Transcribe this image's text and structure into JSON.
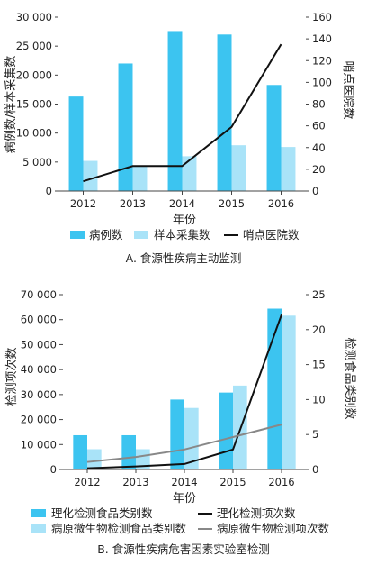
{
  "chart_data": [
    {
      "type": "bar",
      "title": "A. 食源性疾病主动监测",
      "xlabel": "年份",
      "ylabel": "病例数/样本采集数",
      "y2label": "哨点医院数",
      "categories": [
        "2012",
        "2013",
        "2014",
        "2015",
        "2016"
      ],
      "ylim": [
        0,
        30000
      ],
      "y2lim": [
        0,
        160
      ],
      "yticks": [
        "0",
        "5 000",
        "10 000",
        "15 000",
        "20 000",
        "25 000",
        "30 000"
      ],
      "y2ticks": [
        "0",
        "20",
        "40",
        "60",
        "80",
        "100",
        "120",
        "140",
        "160"
      ],
      "series": [
        {
          "name": "病例数",
          "kind": "bar",
          "axis": "left",
          "color": "#3cc4f0",
          "values": [
            16300,
            22000,
            27600,
            27000,
            18300
          ]
        },
        {
          "name": "样本采集数",
          "kind": "bar",
          "axis": "left",
          "color": "#a9e3f8",
          "values": [
            5200,
            4300,
            6000,
            7900,
            7600
          ]
        },
        {
          "name": "哨点医院数",
          "kind": "line",
          "axis": "right",
          "color": "#111111",
          "values": [
            9,
            23,
            23,
            59,
            135
          ]
        }
      ],
      "legend_position": "bottom"
    },
    {
      "type": "bar",
      "title": "B. 食源性疾病危害因素实验室检测",
      "xlabel": "年份",
      "ylabel": "检测项次数",
      "y2label": "检测食品类别数",
      "categories": [
        "2012",
        "2013",
        "2014",
        "2015",
        "2016"
      ],
      "ylim": [
        0,
        70000
      ],
      "y2lim": [
        0,
        25
      ],
      "yticks": [
        "0",
        "10 000",
        "20 000",
        "30 000",
        "40 000",
        "50 000",
        "60 000",
        "70 000"
      ],
      "y2ticks": [
        "0",
        "5",
        "10",
        "15",
        "20",
        "25"
      ],
      "series": [
        {
          "name": "理化检测食品类别数",
          "kind": "bar",
          "axis": "right",
          "color": "#3cc4f0",
          "values": [
            4.9,
            4.9,
            10.0,
            11.0,
            23.0
          ]
        },
        {
          "name": "病原微生物检测食品类别数",
          "kind": "bar",
          "axis": "right",
          "color": "#a9e3f8",
          "values": [
            2.9,
            2.9,
            8.8,
            12.0,
            22.0
          ]
        },
        {
          "name": "理化检测项次数",
          "kind": "line",
          "axis": "left",
          "color": "#111111",
          "values": [
            500,
            1200,
            2200,
            8000,
            62000
          ]
        },
        {
          "name": "病原微生物检测项次数",
          "kind": "line",
          "axis": "left",
          "color": "#888888",
          "values": [
            3000,
            5000,
            8000,
            13000,
            18000
          ]
        }
      ],
      "legend_position": "bottom"
    }
  ]
}
